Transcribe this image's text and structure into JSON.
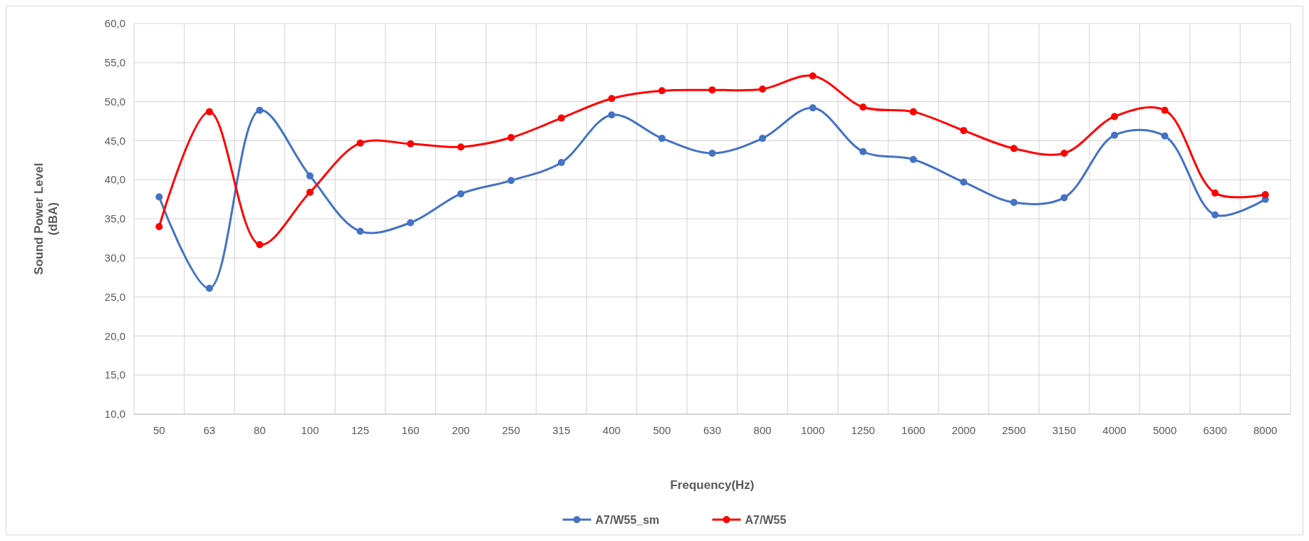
{
  "chart_data": {
    "type": "line",
    "xlabel": "Frequency(Hz)",
    "ylabel": "Sound Power Level\n(dBA)",
    "categories": [
      "50",
      "63",
      "80",
      "100",
      "125",
      "160",
      "200",
      "250",
      "315",
      "400",
      "500",
      "630",
      "800",
      "1000",
      "1250",
      "1600",
      "2000",
      "2500",
      "3150",
      "4000",
      "5000",
      "6300",
      "8000"
    ],
    "series": [
      {
        "name": "A7/W55_sm",
        "color": "#4472c4",
        "values": [
          37.8,
          26.1,
          48.9,
          40.5,
          33.4,
          34.5,
          38.2,
          39.9,
          42.2,
          48.3,
          45.3,
          43.4,
          45.3,
          49.2,
          43.6,
          42.6,
          39.7,
          37.1,
          37.7,
          45.7,
          45.6,
          35.5,
          37.5
        ]
      },
      {
        "name": "A7/W55",
        "color": "#ff0000",
        "values": [
          34.0,
          48.7,
          31.7,
          38.4,
          44.7,
          44.6,
          44.2,
          45.4,
          47.9,
          50.4,
          51.4,
          51.5,
          51.6,
          53.3,
          49.3,
          48.7,
          46.3,
          44.0,
          43.4,
          48.1,
          48.9,
          38.3,
          38.1
        ]
      }
    ],
    "ylim": [
      10,
      60
    ],
    "yticks": [
      {
        "value": 10,
        "label": "10,0"
      },
      {
        "value": 15,
        "label": "15,0"
      },
      {
        "value": 20,
        "label": "20,0"
      },
      {
        "value": 25,
        "label": "25,0"
      },
      {
        "value": 30,
        "label": "30,0"
      },
      {
        "value": 35,
        "label": "35,0"
      },
      {
        "value": 40,
        "label": "40,0"
      },
      {
        "value": 45,
        "label": "45,0"
      },
      {
        "value": 50,
        "label": "50,0"
      },
      {
        "value": 55,
        "label": "55,0"
      },
      {
        "value": 60,
        "label": "60,0"
      }
    ],
    "grid": true,
    "legend": "bottom",
    "marker": "circle",
    "line_style": "solid"
  }
}
